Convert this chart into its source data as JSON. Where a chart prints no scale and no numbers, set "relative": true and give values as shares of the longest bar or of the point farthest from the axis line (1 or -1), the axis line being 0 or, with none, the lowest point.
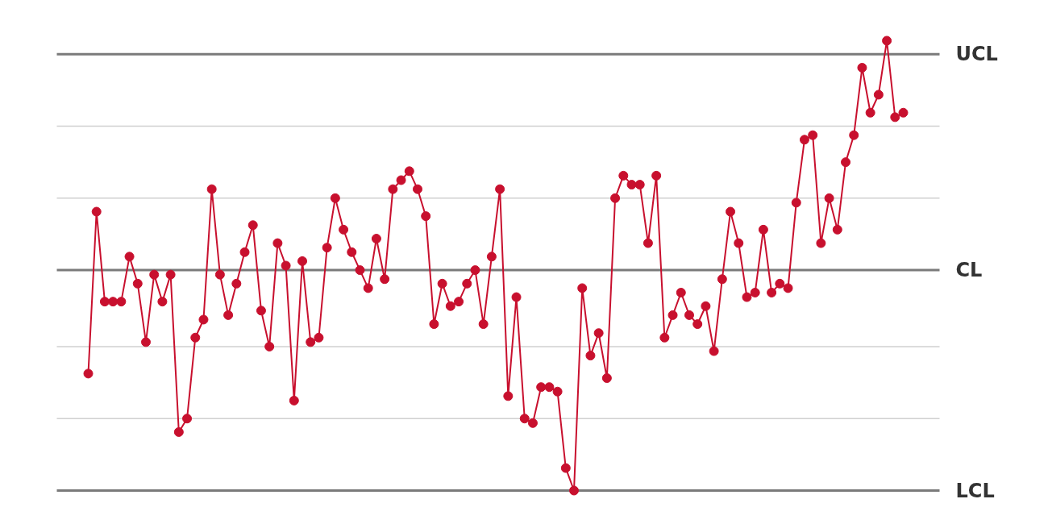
{
  "chart_data": {
    "type": "line",
    "relative": true,
    "marker": "circle",
    "line_style": "solid",
    "grid": false,
    "categories": [
      null,
      null,
      null,
      null,
      null,
      null,
      null,
      null,
      null,
      null,
      null,
      null,
      null,
      null,
      null,
      null,
      null,
      null,
      null,
      null,
      null,
      null,
      null,
      null,
      null,
      null,
      null,
      null,
      null,
      null,
      null,
      null,
      null,
      null,
      null,
      null,
      null,
      null,
      null,
      null,
      null,
      null,
      null,
      null,
      null,
      null,
      null,
      null,
      null,
      null,
      null,
      null,
      null,
      null,
      null,
      null,
      null,
      null,
      null,
      null,
      null,
      null,
      null,
      null,
      null,
      null,
      null,
      null,
      null,
      null,
      null,
      null,
      null,
      null,
      null,
      null,
      null,
      null,
      null,
      null,
      null,
      null,
      null,
      null,
      null,
      null,
      null,
      null,
      null,
      null,
      null,
      null,
      null,
      null,
      null,
      null,
      null,
      null,
      null,
      null
    ],
    "series": [
      {
        "color": "#c8102e",
        "values": [
          0.26,
          0.62,
          0.42,
          0.42,
          0.42,
          0.52,
          0.46,
          0.33,
          0.48,
          0.42,
          0.48,
          0.13,
          0.16,
          0.34,
          0.38,
          0.67,
          0.48,
          0.39,
          0.46,
          0.53,
          0.59,
          0.4,
          0.32,
          0.55,
          0.5,
          0.2,
          0.51,
          0.33,
          0.34,
          0.54,
          0.65,
          0.58,
          0.53,
          0.49,
          0.45,
          0.56,
          0.47,
          0.67,
          0.69,
          0.71,
          0.67,
          0.61,
          0.37,
          0.46,
          0.41,
          0.42,
          0.46,
          0.49,
          0.37,
          0.52,
          0.67,
          0.21,
          0.43,
          0.16,
          0.15,
          0.23,
          0.23,
          0.22,
          0.05,
          0,
          0.45,
          0.3,
          0.35,
          0.25,
          0.65,
          0.7,
          0.68,
          0.68,
          0.55,
          0.7,
          0.34,
          0.39,
          0.44,
          0.39,
          0.37,
          0.41,
          0.31,
          0.47,
          0.62,
          0.55,
          0.43,
          0.44,
          0.58,
          0.44,
          0.46,
          0.45,
          0.64,
          0.78,
          0.79,
          0.55,
          0.65,
          0.58,
          0.73,
          0.79,
          0.94,
          0.84,
          0.88,
          1,
          0.83,
          0.84
        ]
      }
    ],
    "ref_lines": [
      {
        "axis": "y",
        "value": 0.81,
        "label": null,
        "color": "#d0d0d0"
      },
      {
        "axis": "y",
        "value": 0.65,
        "label": null,
        "color": "#d0d0d0"
      },
      {
        "axis": "y",
        "value": 0.32,
        "label": null,
        "color": "#d0d0d0"
      },
      {
        "axis": "y",
        "value": 0.16,
        "label": null,
        "color": "#d0d0d0"
      },
      {
        "axis": "y",
        "value": 0.97,
        "label": "UCL",
        "color": "#7a7a7a"
      },
      {
        "axis": "y",
        "value": 0.49,
        "label": "CL",
        "color": "#7a7a7a"
      },
      {
        "axis": "y",
        "value": 0,
        "label": "LCL",
        "color": "#7a7a7a"
      }
    ]
  }
}
